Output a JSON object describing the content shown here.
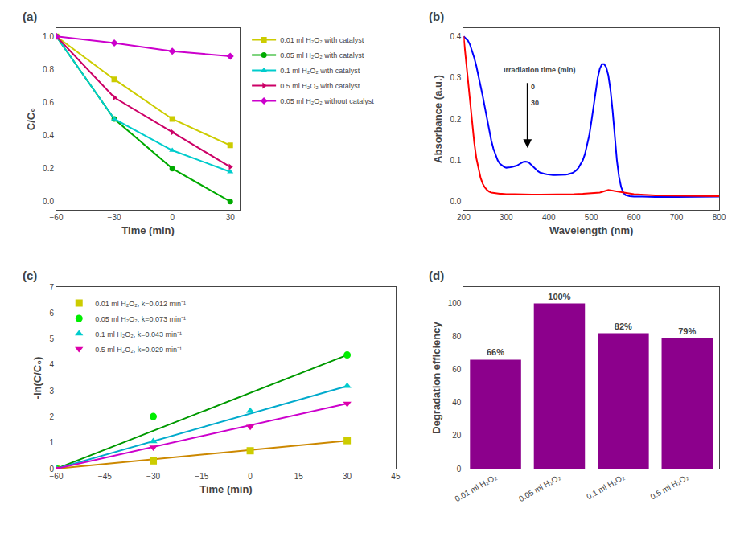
{
  "chart_data": [
    {
      "type": "line",
      "title": "(a)",
      "xlabel": "Time (min)",
      "ylabel": "C/C₀",
      "x": [
        -60,
        -30,
        0,
        30
      ],
      "series": [
        {
          "name": "0.01 ml H₂O₂ with catalyst",
          "color": "#cccc00",
          "marker": "square",
          "values": [
            1.0,
            0.74,
            0.5,
            0.34
          ]
        },
        {
          "name": "0.05 ml H₂O₂ with catalyst",
          "color": "#00aa00",
          "marker": "circle",
          "values": [
            1.0,
            0.5,
            0.2,
            0.0
          ]
        },
        {
          "name": "0.1 ml H₂O₂ with catalyst",
          "color": "#00cccc",
          "marker": "triangle-up",
          "values": [
            1.0,
            0.5,
            0.31,
            0.18
          ]
        },
        {
          "name": "0.5 ml H₂O₂ with catalyst",
          "color": "#cc0066",
          "marker": "triangle-right",
          "values": [
            1.0,
            0.63,
            0.42,
            0.21
          ]
        },
        {
          "name": "0.05 ml H₂O₂ without catalyst",
          "color": "#cc00cc",
          "marker": "diamond",
          "values": [
            1.0,
            0.96,
            0.91,
            0.88
          ]
        }
      ],
      "xlim": [
        -60,
        35
      ],
      "ylim": [
        -0.05,
        1.05
      ],
      "xticks": [
        -60,
        -30,
        0,
        30
      ],
      "yticks": [
        {
          "value": 0.0,
          "label": "0.0"
        },
        0.2,
        0.4,
        0.6,
        0.8,
        {
          "value": 1.0,
          "label": "1.0"
        }
      ],
      "legend": "right"
    },
    {
      "type": "line",
      "title": "(b)",
      "xlabel": "Wavelength (nm)",
      "ylabel": "Absorbance (a.u.)",
      "series": [
        {
          "color": "blue",
          "x": [
            200,
            210,
            215,
            220,
            225,
            230,
            235,
            240,
            245,
            250,
            255,
            260,
            265,
            270,
            275,
            280,
            285,
            290,
            295,
            300,
            305,
            310,
            315,
            320,
            325,
            330,
            335,
            340,
            345,
            350,
            355,
            360,
            365,
            370,
            375,
            380,
            385,
            390,
            395,
            400,
            405,
            410,
            415,
            420,
            425,
            430,
            435,
            440,
            445,
            450,
            455,
            460,
            465,
            470,
            475,
            480,
            485,
            490,
            495,
            500,
            505,
            510,
            515,
            520,
            525,
            530,
            535,
            540,
            545,
            550,
            555,
            560,
            565,
            570,
            575,
            580,
            590,
            600,
            620,
            650,
            700,
            750,
            800
          ],
          "values": [
            0.4,
            0.39,
            0.38,
            0.365,
            0.348,
            0.328,
            0.305,
            0.28,
            0.255,
            0.228,
            0.2,
            0.172,
            0.148,
            0.128,
            0.112,
            0.1,
            0.092,
            0.087,
            0.084,
            0.082,
            0.082,
            0.083,
            0.084,
            0.085,
            0.087,
            0.09,
            0.093,
            0.096,
            0.097,
            0.096,
            0.093,
            0.088,
            0.082,
            0.077,
            0.073,
            0.07,
            0.068,
            0.067,
            0.066,
            0.065,
            0.065,
            0.064,
            0.064,
            0.064,
            0.064,
            0.064,
            0.064,
            0.065,
            0.066,
            0.067,
            0.069,
            0.072,
            0.076,
            0.082,
            0.09,
            0.1,
            0.115,
            0.135,
            0.16,
            0.193,
            0.232,
            0.27,
            0.3,
            0.322,
            0.333,
            0.333,
            0.325,
            0.305,
            0.27,
            0.22,
            0.16,
            0.1,
            0.06,
            0.035,
            0.022,
            0.016,
            0.013,
            0.012,
            0.012,
            0.011,
            0.011,
            0.011,
            0.012
          ]
        },
        {
          "color": "red",
          "x": [
            200,
            205,
            210,
            215,
            220,
            225,
            230,
            235,
            240,
            245,
            250,
            255,
            260,
            265,
            270,
            275,
            280,
            285,
            290,
            295,
            300,
            320,
            340,
            360,
            380,
            400,
            420,
            440,
            460,
            480,
            500,
            520,
            540,
            560,
            580,
            600,
            650,
            700,
            750,
            800
          ],
          "values": [
            0.4,
            0.35,
            0.295,
            0.24,
            0.188,
            0.143,
            0.105,
            0.077,
            0.057,
            0.043,
            0.034,
            0.028,
            0.024,
            0.022,
            0.021,
            0.02,
            0.019,
            0.019,
            0.019,
            0.018,
            0.018,
            0.018,
            0.017,
            0.017,
            0.017,
            0.017,
            0.017,
            0.017,
            0.018,
            0.019,
            0.02,
            0.022,
            0.028,
            0.025,
            0.021,
            0.018,
            0.015,
            0.014,
            0.013,
            0.013
          ]
        }
      ],
      "xlim": [
        200,
        800
      ],
      "ylim": [
        -0.02,
        0.42
      ],
      "xticks": [
        200,
        300,
        400,
        500,
        600,
        700,
        800
      ],
      "yticks": [
        {
          "value": 0.0,
          "label": "0.0"
        },
        0.1,
        0.2,
        0.3,
        0.4
      ],
      "annotations": [
        {
          "text": "Irradiation time (min)",
          "x": 290,
          "y": 0.305
        },
        {
          "text": "0",
          "x": 355,
          "y": 0.265
        },
        {
          "text": "30",
          "x": 355,
          "y": 0.225
        }
      ],
      "arrows": [
        {
          "from_x": 350,
          "from_y": 0.29,
          "x": 350,
          "y": 0.13
        }
      ]
    },
    {
      "type": "scatter",
      "title": "(c)",
      "xlabel": "Time (min)",
      "ylabel": "-ln(C/C₀)",
      "series": [
        {
          "type": "line",
          "color": "#cc8800",
          "x": [
            -60,
            30
          ],
          "values": [
            0.0,
            1.08
          ]
        },
        {
          "type": "scatter",
          "name": "0.01 ml H₂O₂, k=0.012 min⁻¹",
          "color": "#cccc00",
          "marker": "square",
          "x": [
            -60,
            -30,
            0,
            30
          ],
          "values": [
            0.0,
            0.3,
            0.69,
            1.08
          ]
        },
        {
          "type": "line",
          "color": "#009900",
          "x": [
            -60,
            30
          ],
          "values": [
            0.0,
            4.38
          ]
        },
        {
          "type": "scatter",
          "name": "0.05 ml H₂O₂, k=0.073 min⁻¹",
          "color": "#00ee00",
          "marker": "circle",
          "x": [
            -60,
            -30,
            30
          ],
          "values": [
            0.0,
            2.01,
            4.38
          ]
        },
        {
          "type": "line",
          "color": "#00aacc",
          "x": [
            -60,
            30
          ],
          "values": [
            0.0,
            3.18
          ]
        },
        {
          "type": "scatter",
          "name": "0.1 ml H₂O₂, k=0.043 min⁻¹",
          "color": "#00cccc",
          "marker": "triangle-up",
          "x": [
            -60,
            -30,
            0,
            30
          ],
          "values": [
            0.0,
            1.05,
            2.22,
            3.18
          ]
        },
        {
          "type": "line",
          "color": "#cc00cc",
          "x": [
            -60,
            30
          ],
          "values": [
            0.0,
            2.51
          ]
        },
        {
          "type": "scatter",
          "name": "0.5 ml H₂O₂, k=0.029 min⁻¹",
          "color": "#dd00aa",
          "marker": "triangle-down",
          "x": [
            -60,
            -30,
            0,
            30
          ],
          "values": [
            0.0,
            0.82,
            1.62,
            2.51
          ]
        }
      ],
      "xlim": [
        -60,
        45
      ],
      "ylim": [
        0,
        7
      ],
      "xticks": [
        -60,
        -45,
        -30,
        -15,
        0,
        15,
        30,
        45
      ],
      "yticks": [
        0,
        1,
        2,
        3,
        4,
        5,
        6,
        7
      ],
      "legend": "upper left"
    },
    {
      "type": "bar",
      "title": "(d)",
      "ylabel": "Degradation efficiency",
      "categories": [
        "0.01 ml H₂O₂",
        "0.05 ml H₂O₂",
        "0.1 ml H₂O₂",
        "0.5 ml H₂O₂"
      ],
      "values": [
        66,
        100,
        82,
        79
      ],
      "value_labels": [
        "66%",
        "100%",
        "82%",
        "79%"
      ],
      "data_labels": true,
      "color": "#8c008c",
      "ylim": [
        0,
        110
      ],
      "yticks": [
        0,
        20,
        40,
        60,
        80,
        100
      ]
    }
  ]
}
